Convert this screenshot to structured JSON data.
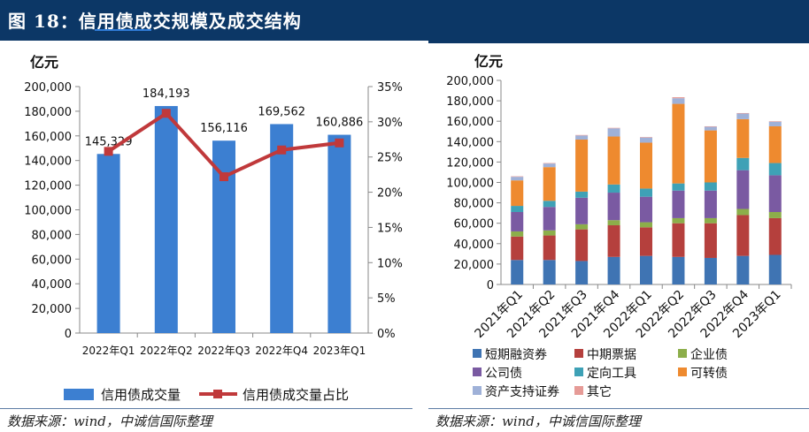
{
  "header": {
    "title": "图 18：信用债成交规模及成交结构"
  },
  "sources": {
    "left": "数据来源：wind，中诚信国际整理",
    "right": "数据来源：wind，中诚信国际整理"
  },
  "chart_data": [
    {
      "type": "bar",
      "title": "",
      "unit_label": "亿元",
      "categories": [
        "2022年Q1",
        "2022年Q2",
        "2022年Q3",
        "2022年Q4",
        "2023年Q1"
      ],
      "series": [
        {
          "name": "信用债成交量",
          "kind": "bar",
          "axis": "left",
          "color": "#3c7fd1",
          "values": [
            145329,
            184193,
            156116,
            169562,
            160886
          ],
          "labels": [
            "145,329",
            "184,193",
            "156,116",
            "169,562",
            "160,886"
          ]
        },
        {
          "name": "信用债成交量占比",
          "kind": "line",
          "axis": "right",
          "color": "#c0393b",
          "values": [
            25.8,
            31.2,
            22.2,
            26.0,
            27.0
          ]
        }
      ],
      "ylim": [
        0,
        200000
      ],
      "yticks": [
        "0",
        "20,000",
        "40,000",
        "60,000",
        "80,000",
        "100,000",
        "120,000",
        "140,000",
        "160,000",
        "180,000",
        "200,000"
      ],
      "y2lim": [
        0,
        35
      ],
      "y2ticks": [
        "0%",
        "5%",
        "10%",
        "15%",
        "20%",
        "25%",
        "30%",
        "35%"
      ],
      "legend": "bottom"
    },
    {
      "type": "bar",
      "stacked": true,
      "title": "",
      "unit_label": "亿元",
      "categories": [
        "2021年Q1",
        "2021年Q2",
        "2021年Q3",
        "2021年Q4",
        "2022年Q1",
        "2022年Q2",
        "2022年Q3",
        "2022年Q4",
        "2023年Q1"
      ],
      "series": [
        {
          "name": "短期融资券",
          "color": "#3f74b3",
          "values": [
            24000,
            24000,
            23000,
            27000,
            28000,
            27000,
            26000,
            28000,
            29000
          ]
        },
        {
          "name": "中期票据",
          "color": "#b5403d",
          "values": [
            23000,
            24000,
            31000,
            31000,
            28000,
            33000,
            34000,
            40000,
            36000
          ]
        },
        {
          "name": "企业债",
          "color": "#8cae4a",
          "values": [
            5000,
            5000,
            5000,
            5000,
            5000,
            5000,
            5000,
            6000,
            6000
          ]
        },
        {
          "name": "公司债",
          "color": "#7a5aa2",
          "values": [
            19000,
            23000,
            26000,
            27000,
            25000,
            27000,
            27000,
            38000,
            36000
          ]
        },
        {
          "name": "定向工具",
          "color": "#3ea1b6",
          "values": [
            6000,
            6000,
            6000,
            8000,
            8000,
            7000,
            8000,
            12000,
            12000
          ]
        },
        {
          "name": "可转债",
          "color": "#ee8a2f",
          "values": [
            25000,
            33000,
            51000,
            47000,
            45000,
            78000,
            51000,
            38000,
            36000
          ]
        },
        {
          "name": "资产支持证券",
          "color": "#9fb1d8",
          "values": [
            3500,
            3500,
            4000,
            8000,
            5000,
            5500,
            3500,
            5500,
            4500
          ]
        },
        {
          "name": "其它",
          "color": "#e69b97",
          "values": [
            500,
            500,
            500,
            500,
            500,
            1000,
            500,
            500,
            500
          ]
        }
      ],
      "ylim": [
        0,
        200000
      ],
      "yticks": [
        "0",
        "20,000",
        "40,000",
        "60,000",
        "80,000",
        "100,000",
        "120,000",
        "140,000",
        "160,000",
        "180,000",
        "200,000"
      ],
      "legend": "bottom"
    }
  ]
}
